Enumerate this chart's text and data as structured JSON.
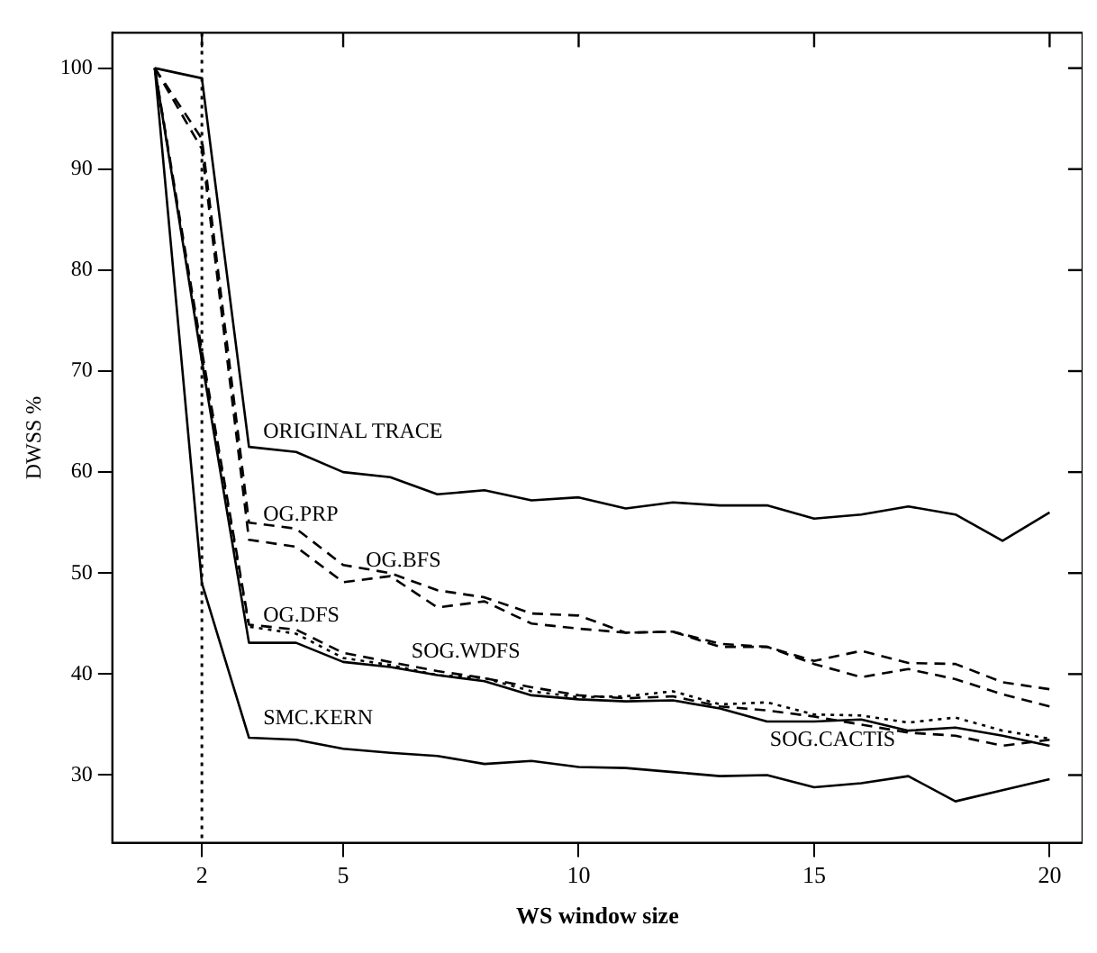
{
  "chart_data": {
    "type": "line",
    "xlabel": "WS window size",
    "ylabel": "DWSS %",
    "x": [
      1,
      2,
      3,
      4,
      5,
      6,
      7,
      8,
      9,
      10,
      11,
      12,
      13,
      14,
      15,
      16,
      17,
      18,
      19,
      20
    ],
    "xlim": [
      0.1,
      20.7
    ],
    "xticks": [
      2,
      5,
      10,
      15,
      20
    ],
    "ylim": [
      23.3,
      103.5
    ],
    "yticks": [
      30,
      40,
      50,
      60,
      70,
      80,
      90,
      100
    ],
    "grid": false,
    "legend": false,
    "ref_lines": [
      {
        "axis": "x",
        "value": 2,
        "color": "#000000",
        "line_style": "dotted"
      }
    ],
    "series": [
      {
        "name": "ORIGINAL TRACE",
        "color": "#000000",
        "line_style": "solid",
        "values": [
          100,
          99,
          62.5,
          62,
          60,
          59.5,
          57.8,
          58.2,
          57.2,
          57.5,
          56.4,
          57,
          56.7,
          56.7,
          55.4,
          55.8,
          56.6,
          55.8,
          53.2,
          56
        ]
      },
      {
        "name": "OG.PRP",
        "color": "#000000",
        "line_style": "dashed",
        "values": [
          100,
          93,
          55,
          54.4,
          50.8,
          50,
          48.3,
          47.6,
          46,
          45.8,
          44.1,
          44.2,
          42.7,
          42.7,
          41,
          39.7,
          40.5,
          39.5,
          38,
          36.8
        ]
      },
      {
        "name": "OG.BFS",
        "color": "#000000",
        "line_style": "dashed",
        "values": [
          100,
          92,
          53.3,
          52.6,
          49.1,
          49.7,
          46.6,
          47.2,
          45,
          44.5,
          44.1,
          44.2,
          43,
          42.7,
          41.3,
          42.3,
          41.1,
          41,
          39.2,
          38.5
        ]
      },
      {
        "name": "OG.DFS",
        "color": "#000000",
        "line_style": "dashed",
        "values": [
          100,
          72,
          44.9,
          44.4,
          42.1,
          41.2,
          40.3,
          39.6,
          38.7,
          37.9,
          37.6,
          37.8,
          36.8,
          36.4,
          35.8,
          35,
          34.2,
          33.9,
          32.9,
          33.5
        ]
      },
      {
        "name": "SOG.WDFS",
        "color": "#000000",
        "line_style": "dotted",
        "values": [
          100,
          71.5,
          44.7,
          44,
          41.6,
          40.9,
          39.9,
          39.6,
          38.3,
          37.7,
          37.8,
          38.3,
          37,
          37.2,
          36,
          35.9,
          35.2,
          35.7,
          34.4,
          33.6
        ]
      },
      {
        "name": "SOG.CACTIS",
        "color": "#000000",
        "line_style": "solid",
        "values": [
          100,
          71,
          43.1,
          43.1,
          41.2,
          40.7,
          39.9,
          39.3,
          37.9,
          37.5,
          37.3,
          37.4,
          36.6,
          35.3,
          35.3,
          35.5,
          34.4,
          34.7,
          33.9,
          32.9
        ]
      },
      {
        "name": "SMC.KERN",
        "color": "#000000",
        "line_style": "solid",
        "values": [
          100,
          49,
          33.7,
          33.5,
          32.6,
          32.2,
          31.9,
          31.1,
          31.4,
          30.8,
          30.7,
          30.3,
          29.9,
          30,
          28.8,
          29.2,
          29.9,
          27.4,
          28.5,
          29.6
        ]
      }
    ]
  }
}
